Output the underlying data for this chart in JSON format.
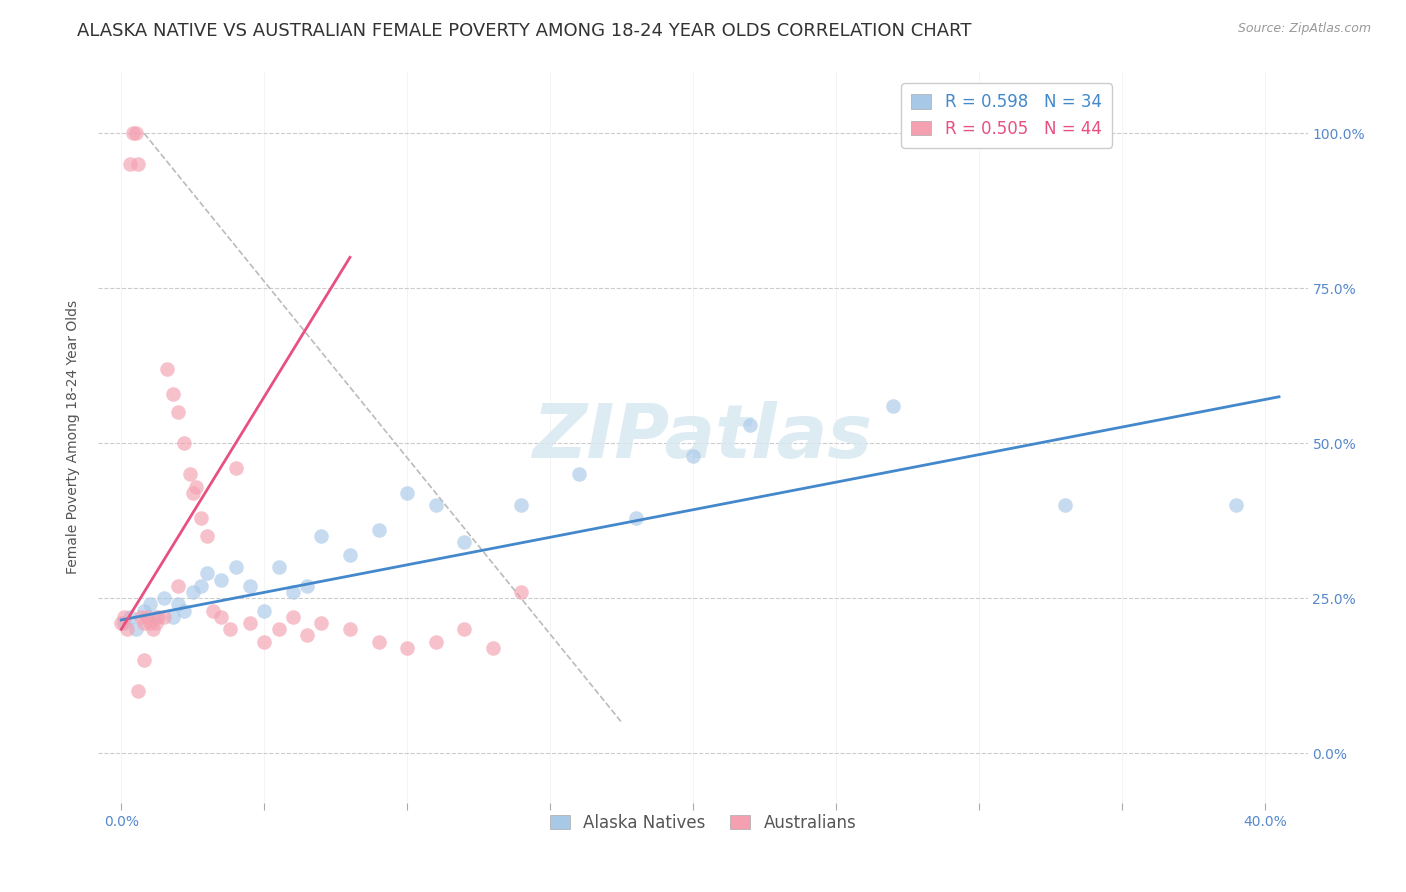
{
  "title": "ALASKA NATIVE VS AUSTRALIAN FEMALE POVERTY AMONG 18-24 YEAR OLDS CORRELATION CHART",
  "source": "Source: ZipAtlas.com",
  "xlabel_ticks": [
    "0.0%",
    "",
    "",
    "",
    "",
    "",
    "",
    "",
    "40.0%"
  ],
  "xlabel_tick_vals": [
    0.0,
    0.05,
    0.1,
    0.15,
    0.2,
    0.25,
    0.3,
    0.35,
    0.4
  ],
  "ylabel": "Female Poverty Among 18-24 Year Olds",
  "ylabel_ticks": [
    "100.0%",
    "75.0%",
    "50.0%",
    "25.0%",
    "0.0%"
  ],
  "ylabel_tick_vals": [
    1.0,
    0.75,
    0.5,
    0.25,
    0.0
  ],
  "xlim": [
    -0.008,
    0.415
  ],
  "ylim": [
    -0.08,
    1.1
  ],
  "legend_blue_R": "R = 0.598",
  "legend_blue_N": "N = 34",
  "legend_pink_R": "R = 0.505",
  "legend_pink_N": "N = 44",
  "blue_color": "#a8c8e8",
  "pink_color": "#f4a0b0",
  "blue_line_color": "#4488cc",
  "pink_line_color": "#e85080",
  "dashed_line_color": "#bbbbbb",
  "watermark_color": "#d8e8f0",
  "blue_scatter_x": [
    0.001,
    0.003,
    0.005,
    0.008,
    0.01,
    0.012,
    0.015,
    0.018,
    0.02,
    0.022,
    0.025,
    0.028,
    0.03,
    0.035,
    0.04,
    0.045,
    0.05,
    0.055,
    0.06,
    0.065,
    0.07,
    0.08,
    0.09,
    0.1,
    0.11,
    0.12,
    0.14,
    0.16,
    0.18,
    0.2,
    0.22,
    0.27,
    0.33,
    0.39
  ],
  "blue_scatter_y": [
    0.21,
    0.22,
    0.2,
    0.23,
    0.24,
    0.22,
    0.25,
    0.22,
    0.24,
    0.23,
    0.26,
    0.27,
    0.29,
    0.28,
    0.3,
    0.27,
    0.23,
    0.3,
    0.26,
    0.27,
    0.35,
    0.32,
    0.36,
    0.42,
    0.4,
    0.34,
    0.4,
    0.45,
    0.38,
    0.48,
    0.53,
    0.56,
    0.4,
    0.4
  ],
  "pink_scatter_x": [
    0.0,
    0.001,
    0.002,
    0.003,
    0.004,
    0.005,
    0.006,
    0.007,
    0.008,
    0.009,
    0.01,
    0.011,
    0.012,
    0.013,
    0.015,
    0.016,
    0.018,
    0.02,
    0.022,
    0.024,
    0.025,
    0.026,
    0.028,
    0.03,
    0.032,
    0.035,
    0.038,
    0.04,
    0.045,
    0.05,
    0.055,
    0.06,
    0.065,
    0.07,
    0.08,
    0.09,
    0.1,
    0.11,
    0.12,
    0.13,
    0.14,
    0.02,
    0.008,
    0.006
  ],
  "pink_scatter_y": [
    0.21,
    0.22,
    0.2,
    0.95,
    1.0,
    1.0,
    0.95,
    0.22,
    0.21,
    0.22,
    0.21,
    0.2,
    0.21,
    0.22,
    0.22,
    0.62,
    0.58,
    0.55,
    0.5,
    0.45,
    0.42,
    0.43,
    0.38,
    0.35,
    0.23,
    0.22,
    0.2,
    0.46,
    0.21,
    0.18,
    0.2,
    0.22,
    0.19,
    0.21,
    0.2,
    0.18,
    0.17,
    0.18,
    0.2,
    0.17,
    0.26,
    0.27,
    0.15,
    0.1
  ],
  "blue_trend_x": [
    0.0,
    0.405
  ],
  "blue_trend_y": [
    0.215,
    0.575
  ],
  "pink_trend_x": [
    0.0,
    0.08
  ],
  "pink_trend_y": [
    0.2,
    0.8
  ],
  "dashed_line_x": [
    0.008,
    0.175
  ],
  "dashed_line_y": [
    1.0,
    0.05
  ],
  "background_color": "#ffffff",
  "grid_color": "#cccccc",
  "right_tick_color": "#5588cc",
  "title_fontsize": 13,
  "axis_label_fontsize": 10,
  "tick_fontsize": 10,
  "legend_fontsize": 12
}
